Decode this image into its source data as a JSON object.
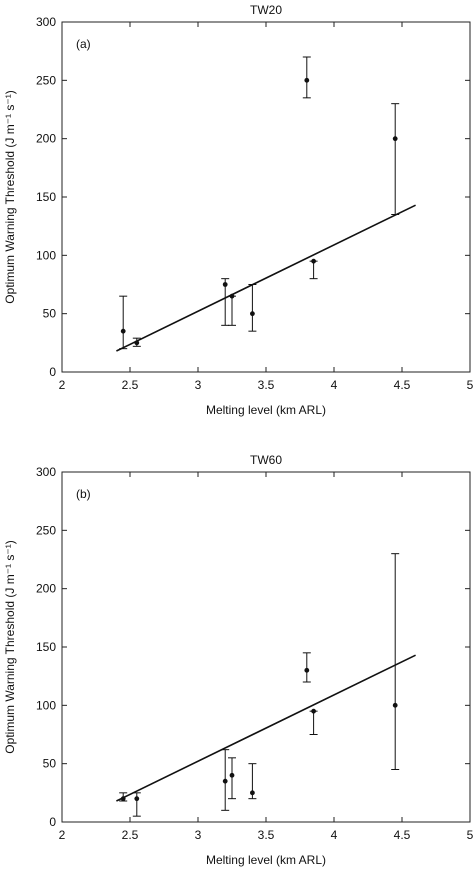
{
  "chart_data": [
    {
      "type": "scatter",
      "title": "TW20",
      "panel_label": "(a)",
      "xlabel": "Melting level  (km ARL)",
      "ylabel": "Optimum Warning Threshold  (J m⁻¹ s⁻¹)",
      "xlim": [
        2,
        5
      ],
      "ylim": [
        0,
        300
      ],
      "xticks": [
        2,
        2.5,
        3,
        3.5,
        4,
        4.5,
        5
      ],
      "xtick_labels": [
        "2",
        "2.5",
        "3",
        "3.5",
        "4",
        "4.5",
        "5"
      ],
      "yticks": [
        0,
        50,
        100,
        150,
        200,
        250,
        300
      ],
      "ytick_labels": [
        "0",
        "50",
        "100",
        "150",
        "200",
        "250",
        "300"
      ],
      "grid": false,
      "points": [
        {
          "x": 2.45,
          "y": 35,
          "y_low": 20,
          "y_high": 65
        },
        {
          "x": 2.55,
          "y": 25,
          "y_low": 22,
          "y_high": 29
        },
        {
          "x": 3.2,
          "y": 75,
          "y_low": 40,
          "y_high": 80
        },
        {
          "x": 3.25,
          "y": 65,
          "y_low": 40,
          "y_high": 65
        },
        {
          "x": 3.4,
          "y": 50,
          "y_low": 35,
          "y_high": 75
        },
        {
          "x": 3.8,
          "y": 250,
          "y_low": 235,
          "y_high": 270
        },
        {
          "x": 3.85,
          "y": 95,
          "y_low": 80,
          "y_high": 95
        },
        {
          "x": 4.45,
          "y": 200,
          "y_low": 135,
          "y_high": 230
        }
      ],
      "fit_line": {
        "x": [
          2.4,
          4.6
        ],
        "y": [
          18,
          143
        ]
      }
    },
    {
      "type": "scatter",
      "title": "TW60",
      "panel_label": "(b)",
      "xlabel": "Melting level  (km ARL)",
      "ylabel": "Optimum Warning Threshold  (J m⁻¹ s⁻¹)",
      "xlim": [
        2,
        5
      ],
      "ylim": [
        0,
        300
      ],
      "xticks": [
        2,
        2.5,
        3,
        3.5,
        4,
        4.5,
        5
      ],
      "xtick_labels": [
        "2",
        "2.5",
        "3",
        "3.5",
        "4",
        "4.5",
        "5"
      ],
      "yticks": [
        0,
        50,
        100,
        150,
        200,
        250,
        300
      ],
      "ytick_labels": [
        "0",
        "50",
        "100",
        "150",
        "200",
        "250",
        "300"
      ],
      "grid": false,
      "points": [
        {
          "x": 2.45,
          "y": 20,
          "y_low": 18,
          "y_high": 25
        },
        {
          "x": 2.55,
          "y": 20,
          "y_low": 5,
          "y_high": 25
        },
        {
          "x": 3.2,
          "y": 35,
          "y_low": 10,
          "y_high": 62
        },
        {
          "x": 3.25,
          "y": 40,
          "y_low": 20,
          "y_high": 55
        },
        {
          "x": 3.4,
          "y": 25,
          "y_low": 20,
          "y_high": 50
        },
        {
          "x": 3.8,
          "y": 130,
          "y_low": 120,
          "y_high": 145
        },
        {
          "x": 3.85,
          "y": 95,
          "y_low": 75,
          "y_high": 95
        },
        {
          "x": 4.45,
          "y": 100,
          "y_low": 45,
          "y_high": 230
        }
      ],
      "fit_line": {
        "x": [
          2.4,
          4.6
        ],
        "y": [
          18,
          143
        ]
      }
    }
  ]
}
